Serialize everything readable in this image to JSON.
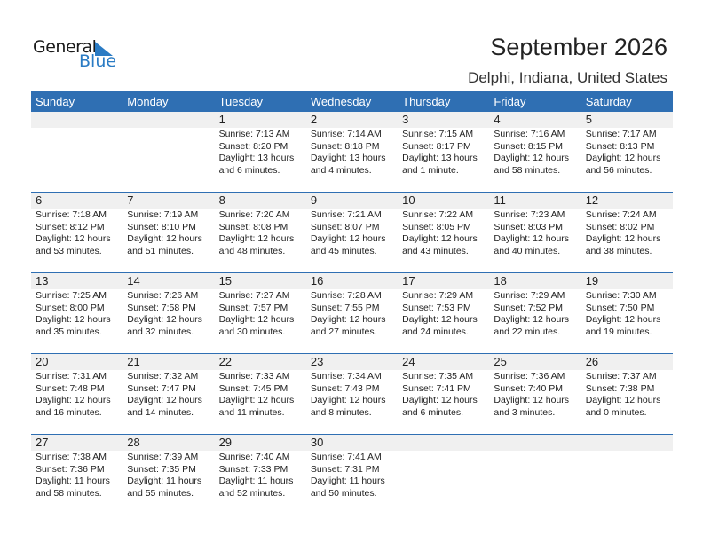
{
  "logo": {
    "text1": "General",
    "text2": "Blue",
    "color": "#2a7bc4"
  },
  "title": "September 2026",
  "location": "Delphi, Indiana, United States",
  "days": [
    "Sunday",
    "Monday",
    "Tuesday",
    "Wednesday",
    "Thursday",
    "Friday",
    "Saturday"
  ],
  "weeks": [
    [
      null,
      null,
      {
        "d": "1",
        "sr": "Sunrise: 7:13 AM",
        "ss": "Sunset: 8:20 PM",
        "dl": "Daylight: 13 hours",
        "dm": "and 6 minutes."
      },
      {
        "d": "2",
        "sr": "Sunrise: 7:14 AM",
        "ss": "Sunset: 8:18 PM",
        "dl": "Daylight: 13 hours",
        "dm": "and 4 minutes."
      },
      {
        "d": "3",
        "sr": "Sunrise: 7:15 AM",
        "ss": "Sunset: 8:17 PM",
        "dl": "Daylight: 13 hours",
        "dm": "and 1 minute."
      },
      {
        "d": "4",
        "sr": "Sunrise: 7:16 AM",
        "ss": "Sunset: 8:15 PM",
        "dl": "Daylight: 12 hours",
        "dm": "and 58 minutes."
      },
      {
        "d": "5",
        "sr": "Sunrise: 7:17 AM",
        "ss": "Sunset: 8:13 PM",
        "dl": "Daylight: 12 hours",
        "dm": "and 56 minutes."
      }
    ],
    [
      {
        "d": "6",
        "sr": "Sunrise: 7:18 AM",
        "ss": "Sunset: 8:12 PM",
        "dl": "Daylight: 12 hours",
        "dm": "and 53 minutes."
      },
      {
        "d": "7",
        "sr": "Sunrise: 7:19 AM",
        "ss": "Sunset: 8:10 PM",
        "dl": "Daylight: 12 hours",
        "dm": "and 51 minutes."
      },
      {
        "d": "8",
        "sr": "Sunrise: 7:20 AM",
        "ss": "Sunset: 8:08 PM",
        "dl": "Daylight: 12 hours",
        "dm": "and 48 minutes."
      },
      {
        "d": "9",
        "sr": "Sunrise: 7:21 AM",
        "ss": "Sunset: 8:07 PM",
        "dl": "Daylight: 12 hours",
        "dm": "and 45 minutes."
      },
      {
        "d": "10",
        "sr": "Sunrise: 7:22 AM",
        "ss": "Sunset: 8:05 PM",
        "dl": "Daylight: 12 hours",
        "dm": "and 43 minutes."
      },
      {
        "d": "11",
        "sr": "Sunrise: 7:23 AM",
        "ss": "Sunset: 8:03 PM",
        "dl": "Daylight: 12 hours",
        "dm": "and 40 minutes."
      },
      {
        "d": "12",
        "sr": "Sunrise: 7:24 AM",
        "ss": "Sunset: 8:02 PM",
        "dl": "Daylight: 12 hours",
        "dm": "and 38 minutes."
      }
    ],
    [
      {
        "d": "13",
        "sr": "Sunrise: 7:25 AM",
        "ss": "Sunset: 8:00 PM",
        "dl": "Daylight: 12 hours",
        "dm": "and 35 minutes."
      },
      {
        "d": "14",
        "sr": "Sunrise: 7:26 AM",
        "ss": "Sunset: 7:58 PM",
        "dl": "Daylight: 12 hours",
        "dm": "and 32 minutes."
      },
      {
        "d": "15",
        "sr": "Sunrise: 7:27 AM",
        "ss": "Sunset: 7:57 PM",
        "dl": "Daylight: 12 hours",
        "dm": "and 30 minutes."
      },
      {
        "d": "16",
        "sr": "Sunrise: 7:28 AM",
        "ss": "Sunset: 7:55 PM",
        "dl": "Daylight: 12 hours",
        "dm": "and 27 minutes."
      },
      {
        "d": "17",
        "sr": "Sunrise: 7:29 AM",
        "ss": "Sunset: 7:53 PM",
        "dl": "Daylight: 12 hours",
        "dm": "and 24 minutes."
      },
      {
        "d": "18",
        "sr": "Sunrise: 7:29 AM",
        "ss": "Sunset: 7:52 PM",
        "dl": "Daylight: 12 hours",
        "dm": "and 22 minutes."
      },
      {
        "d": "19",
        "sr": "Sunrise: 7:30 AM",
        "ss": "Sunset: 7:50 PM",
        "dl": "Daylight: 12 hours",
        "dm": "and 19 minutes."
      }
    ],
    [
      {
        "d": "20",
        "sr": "Sunrise: 7:31 AM",
        "ss": "Sunset: 7:48 PM",
        "dl": "Daylight: 12 hours",
        "dm": "and 16 minutes."
      },
      {
        "d": "21",
        "sr": "Sunrise: 7:32 AM",
        "ss": "Sunset: 7:47 PM",
        "dl": "Daylight: 12 hours",
        "dm": "and 14 minutes."
      },
      {
        "d": "22",
        "sr": "Sunrise: 7:33 AM",
        "ss": "Sunset: 7:45 PM",
        "dl": "Daylight: 12 hours",
        "dm": "and 11 minutes."
      },
      {
        "d": "23",
        "sr": "Sunrise: 7:34 AM",
        "ss": "Sunset: 7:43 PM",
        "dl": "Daylight: 12 hours",
        "dm": "and 8 minutes."
      },
      {
        "d": "24",
        "sr": "Sunrise: 7:35 AM",
        "ss": "Sunset: 7:41 PM",
        "dl": "Daylight: 12 hours",
        "dm": "and 6 minutes."
      },
      {
        "d": "25",
        "sr": "Sunrise: 7:36 AM",
        "ss": "Sunset: 7:40 PM",
        "dl": "Daylight: 12 hours",
        "dm": "and 3 minutes."
      },
      {
        "d": "26",
        "sr": "Sunrise: 7:37 AM",
        "ss": "Sunset: 7:38 PM",
        "dl": "Daylight: 12 hours",
        "dm": "and 0 minutes."
      }
    ],
    [
      {
        "d": "27",
        "sr": "Sunrise: 7:38 AM",
        "ss": "Sunset: 7:36 PM",
        "dl": "Daylight: 11 hours",
        "dm": "and 58 minutes."
      },
      {
        "d": "28",
        "sr": "Sunrise: 7:39 AM",
        "ss": "Sunset: 7:35 PM",
        "dl": "Daylight: 11 hours",
        "dm": "and 55 minutes."
      },
      {
        "d": "29",
        "sr": "Sunrise: 7:40 AM",
        "ss": "Sunset: 7:33 PM",
        "dl": "Daylight: 11 hours",
        "dm": "and 52 minutes."
      },
      {
        "d": "30",
        "sr": "Sunrise: 7:41 AM",
        "ss": "Sunset: 7:31 PM",
        "dl": "Daylight: 11 hours",
        "dm": "and 50 minutes."
      },
      null,
      null,
      null
    ]
  ]
}
